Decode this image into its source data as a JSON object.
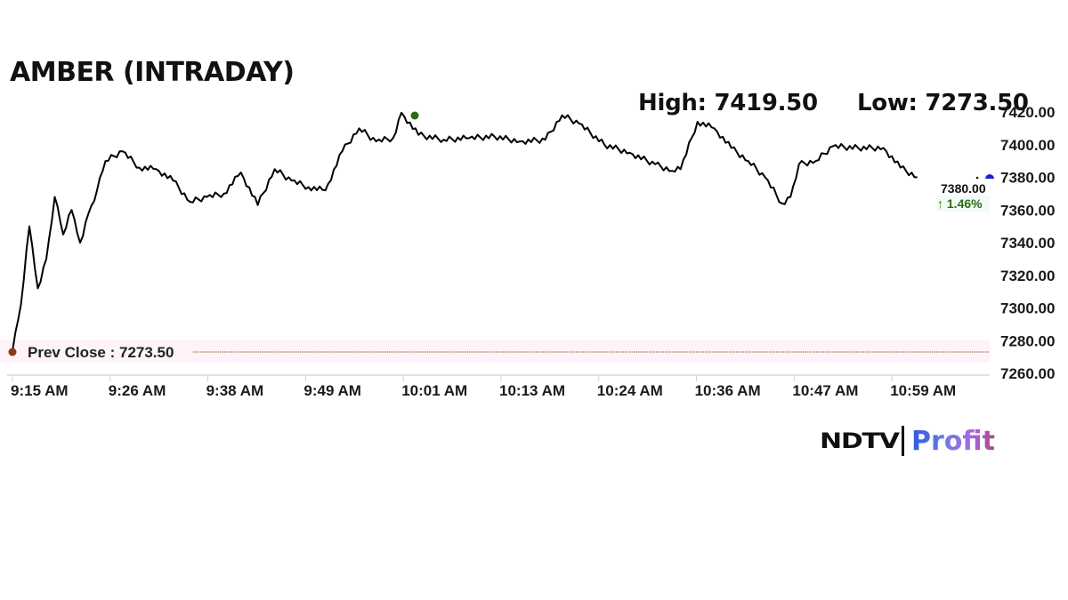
{
  "header": {
    "title": "AMBER (INTRADAY)",
    "high_label": "High: 7419.50",
    "low_label": "Low: 7273.50"
  },
  "annotations": {
    "prev_close_label": "Prev Close : 7273.50",
    "last_value": "7380.00",
    "last_change": "↑ 1.46%",
    "last_change_color": "#2e6b12"
  },
  "logo": {
    "brand": "NDTV",
    "product": "Profit"
  },
  "colors": {
    "line": "#000000",
    "high_marker": "#2e6b12",
    "prev_close_marker": "#8b3a10",
    "prev_close_line": "#8b5a2b",
    "current_marker": "#1e1ed2",
    "axis": "#d9d9d9"
  },
  "chart_data": {
    "type": "line",
    "title": "AMBER (INTRADAY)",
    "xlabel": "",
    "ylabel": "",
    "ylim": [
      7260,
      7420
    ],
    "grid": false,
    "legend": "none",
    "y_ticks": [
      "7420.00",
      "7400.00",
      "7380.00",
      "7360.00",
      "7340.00",
      "7320.00",
      "7300.00",
      "7280.00",
      "7260.00"
    ],
    "x_ticks": [
      "9:15 AM",
      "9:26 AM",
      "9:38 AM",
      "9:49 AM",
      "10:01 AM",
      "10:13 AM",
      "10:24 AM",
      "10:36 AM",
      "10:47 AM",
      "10:59 AM"
    ],
    "prev_close": 7273.5,
    "high": 7419.5,
    "low": 7273.5,
    "last": 7380.0,
    "change_pct": 1.46,
    "series": [
      {
        "name": "AMBER",
        "x": [
          "9:15",
          "9:16",
          "9:17",
          "9:18",
          "9:19",
          "9:20",
          "9:21",
          "9:22",
          "9:23",
          "9:24",
          "9:25",
          "9:26",
          "9:28",
          "9:30",
          "9:32",
          "9:34",
          "9:36",
          "9:38",
          "9:40",
          "9:42",
          "9:44",
          "9:46",
          "9:48",
          "9:50",
          "9:52",
          "9:54",
          "9:56",
          "9:58",
          "10:00",
          "10:01",
          "10:03",
          "10:06",
          "10:09",
          "10:12",
          "10:15",
          "10:18",
          "10:20",
          "10:22",
          "10:25",
          "10:28",
          "10:31",
          "10:33",
          "10:34",
          "10:36",
          "10:38",
          "10:40",
          "10:42",
          "10:44",
          "10:46",
          "10:47",
          "10:48",
          "10:50",
          "10:52",
          "10:55",
          "10:58",
          "11:00",
          "11:02"
        ],
        "values": [
          7273.5,
          7302,
          7350,
          7312,
          7330,
          7368,
          7345,
          7360,
          7340,
          7358,
          7372,
          7390,
          7396,
          7386,
          7385,
          7378,
          7365,
          7368,
          7370,
          7383,
          7363,
          7385,
          7378,
          7374,
          7372,
          7396,
          7410,
          7402,
          7404,
          7419.5,
          7406,
          7403,
          7404,
          7405,
          7402,
          7403,
          7418,
          7413,
          7400,
          7395,
          7388,
          7384,
          7385,
          7414,
          7410,
          7398,
          7390,
          7380,
          7364,
          7368,
          7388,
          7390,
          7399,
          7398,
          7398,
          7386,
          7380
        ]
      }
    ]
  }
}
